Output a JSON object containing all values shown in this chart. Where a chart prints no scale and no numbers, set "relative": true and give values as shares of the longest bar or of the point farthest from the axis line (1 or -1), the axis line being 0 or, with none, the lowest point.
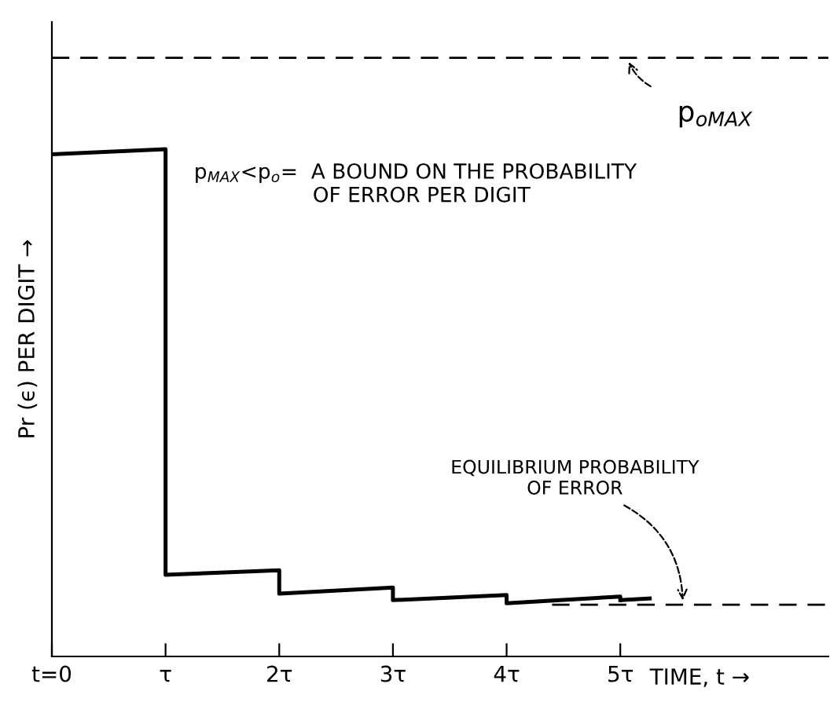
{
  "chart_data": {
    "type": "line",
    "relative": true,
    "ylabel": "Pr (ϵ) PER DIGIT →",
    "xlabel": "TIME, t →",
    "xlim": [
      0,
      6.83
    ],
    "xticks": [
      {
        "value": 0,
        "label": "t=0"
      },
      {
        "value": 1,
        "label": "τ"
      },
      {
        "value": 2,
        "label": "2τ"
      },
      {
        "value": 3,
        "label": "3τ"
      },
      {
        "value": 4,
        "label": "4τ"
      },
      {
        "value": 5,
        "label": "5τ"
      }
    ],
    "series": [
      {
        "color": "#000000",
        "line_style": "solid",
        "x": [
          0,
          1,
          1,
          2,
          2,
          3,
          3,
          4,
          4,
          5,
          5
        ],
        "values": [
          0.99,
          1.0,
          0.161,
          0.17,
          0.124,
          0.136,
          0.111,
          0.121,
          0.105,
          0.118,
          0.111
        ]
      },
      {
        "color": "#000000",
        "line_style": "dashed",
        "x": [
          5,
          5.31
        ],
        "values": [
          0.111,
          0.115
        ]
      }
    ],
    "ref_lines": [
      {
        "axis": "y",
        "value": 1.18,
        "label": "p$_{oMAX}$",
        "color": "#000000",
        "line_style": "dashed"
      },
      {
        "axis": "y",
        "value": 0.102,
        "label": "EQUILIBRIUM PROBABILITY\nOF ERROR",
        "color": "#000000",
        "line_style": "dashed"
      }
    ],
    "annotations": [
      "p$_{MAX}$<p$_{o}$=  A BOUND ON THE PROBABILITY\n                  OF ERROR PER DIGIT"
    ],
    "grid": false,
    "legend": false,
    "marker": "none"
  }
}
